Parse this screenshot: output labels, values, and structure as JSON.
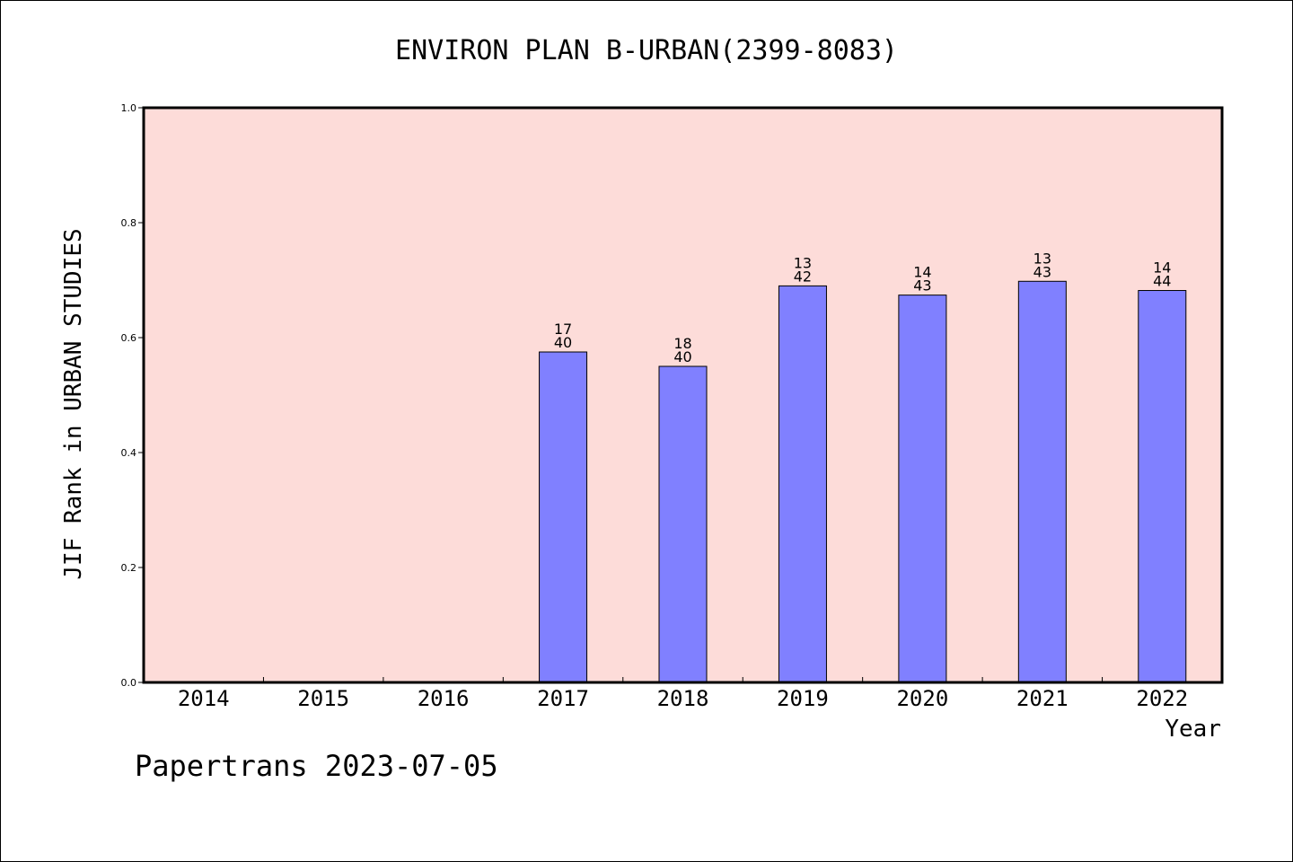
{
  "chart_data": {
    "type": "bar",
    "title": "ENVIRON PLAN B-URBAN(2399-8083)",
    "xlabel": "Year",
    "ylabel": "JIF Rank in URBAN STUDIES",
    "ylim": [
      0,
      1.0
    ],
    "yticks": [
      "0.0",
      "0.2",
      "0.4",
      "0.6",
      "0.8",
      "1.0"
    ],
    "categories": [
      "2014",
      "2015",
      "2016",
      "2017",
      "2018",
      "2019",
      "2020",
      "2021",
      "2022"
    ],
    "values": [
      null,
      null,
      null,
      0.575,
      0.55,
      0.69,
      0.674,
      0.698,
      0.682
    ],
    "rank": [
      null,
      null,
      null,
      "17",
      "18",
      "13",
      "14",
      "13",
      "14"
    ],
    "total": [
      null,
      null,
      null,
      "40",
      "40",
      "42",
      "43",
      "43",
      "44"
    ],
    "grid": false,
    "background_color": "#fddcd9",
    "bar_color": "#8080ff"
  },
  "footer": {
    "credit": "Papertrans 2023-07-05"
  }
}
